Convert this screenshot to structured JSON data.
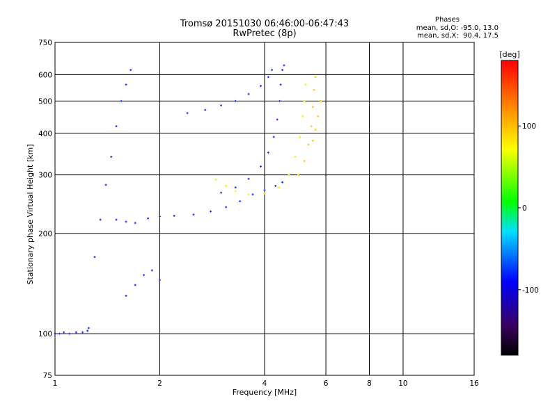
{
  "header": {
    "title_line1": "Tromsø 20151030 06:46:00-06:47:43",
    "title_line2": "RwPretec (8p)"
  },
  "stats": {
    "heading": "Phases",
    "line_o": "mean, sd,O: -95.0, 13.0",
    "line_x": "mean, sd,X:  90.4, 17.5"
  },
  "chart_data": {
    "type": "scatter",
    "xlabel": "Frequency [MHz]",
    "ylabel": "Stationary phase Virtual Height [km]",
    "x_scale": "log",
    "y_scale": "log",
    "xlim": [
      1,
      16
    ],
    "ylim": [
      75,
      750
    ],
    "xticks": [
      1,
      2,
      4,
      6,
      8,
      10,
      16
    ],
    "x_gridlines": [
      2,
      4,
      6,
      8,
      10
    ],
    "yticks": [
      75,
      100,
      200,
      300,
      400,
      500,
      600,
      750
    ],
    "y_gridlines": [
      100,
      200,
      300,
      400,
      500,
      600
    ],
    "grid": true,
    "colorbar": {
      "label": "[deg]",
      "range": [
        -180,
        180
      ],
      "ticks": [
        100,
        0,
        -100
      ],
      "palette": "rainbow"
    },
    "series": [
      {
        "color": "#1f2fff",
        "points": [
          [
            1.0,
            100
          ],
          [
            1.03,
            100
          ],
          [
            1.06,
            101
          ],
          [
            1.1,
            100
          ],
          [
            1.15,
            101
          ],
          [
            1.2,
            101
          ],
          [
            1.24,
            102
          ],
          [
            1.25,
            104
          ]
        ]
      },
      {
        "color": "#1f2fff",
        "points": [
          [
            1.5,
            220
          ],
          [
            1.6,
            217
          ],
          [
            1.7,
            215
          ],
          [
            1.85,
            222
          ],
          [
            2.0,
            225
          ],
          [
            2.2,
            226
          ],
          [
            2.5,
            228
          ],
          [
            2.8,
            233
          ],
          [
            3.1,
            240
          ],
          [
            3.4,
            250
          ],
          [
            3.7,
            262
          ],
          [
            4.0,
            270
          ],
          [
            4.3,
            278
          ],
          [
            4.5,
            285
          ]
        ]
      },
      {
        "color": "#1f2fff",
        "points": [
          [
            2.4,
            460
          ],
          [
            2.7,
            470
          ],
          [
            3.0,
            485
          ],
          [
            3.3,
            500
          ],
          [
            3.6,
            525
          ],
          [
            3.9,
            555
          ],
          [
            4.1,
            590
          ],
          [
            4.2,
            620
          ]
        ]
      },
      {
        "color": "#1f2fff",
        "points": [
          [
            3.0,
            265
          ],
          [
            3.3,
            275
          ],
          [
            3.6,
            292
          ],
          [
            3.9,
            318
          ],
          [
            4.1,
            350
          ],
          [
            4.25,
            390
          ],
          [
            4.35,
            440
          ],
          [
            4.42,
            500
          ],
          [
            4.45,
            560
          ],
          [
            4.5,
            620
          ],
          [
            4.55,
            640
          ]
        ]
      },
      {
        "color": "#1f2fff",
        "points": [
          [
            1.3,
            170
          ],
          [
            1.35,
            220
          ],
          [
            1.4,
            280
          ],
          [
            1.45,
            340
          ],
          [
            1.5,
            420
          ],
          [
            1.55,
            500
          ],
          [
            1.6,
            560
          ],
          [
            1.65,
            620
          ]
        ]
      },
      {
        "color": "#ffee00",
        "points": [
          [
            2.9,
            290
          ],
          [
            3.1,
            278
          ],
          [
            3.3,
            268
          ],
          [
            3.6,
            262
          ],
          [
            4.0,
            264
          ],
          [
            4.4,
            275
          ],
          [
            4.7,
            300
          ],
          [
            4.9,
            340
          ],
          [
            5.05,
            390
          ],
          [
            5.15,
            450
          ],
          [
            5.2,
            500
          ],
          [
            5.25,
            560
          ]
        ]
      },
      {
        "color": "#ffd000",
        "points": [
          [
            5.0,
            300
          ],
          [
            5.2,
            330
          ],
          [
            5.35,
            370
          ],
          [
            5.45,
            420
          ],
          [
            5.5,
            480
          ],
          [
            5.55,
            540
          ],
          [
            5.6,
            590
          ]
        ]
      },
      {
        "color": "#ffcc00",
        "points": [
          [
            5.5,
            380
          ],
          [
            5.6,
            410
          ],
          [
            5.7,
            450
          ],
          [
            5.8,
            500
          ]
        ]
      },
      {
        "color": "#1f2fff",
        "points": [
          [
            1.6,
            130
          ],
          [
            1.7,
            140
          ],
          [
            1.8,
            150
          ],
          [
            1.9,
            155
          ],
          [
            2.0,
            145
          ]
        ]
      }
    ]
  }
}
